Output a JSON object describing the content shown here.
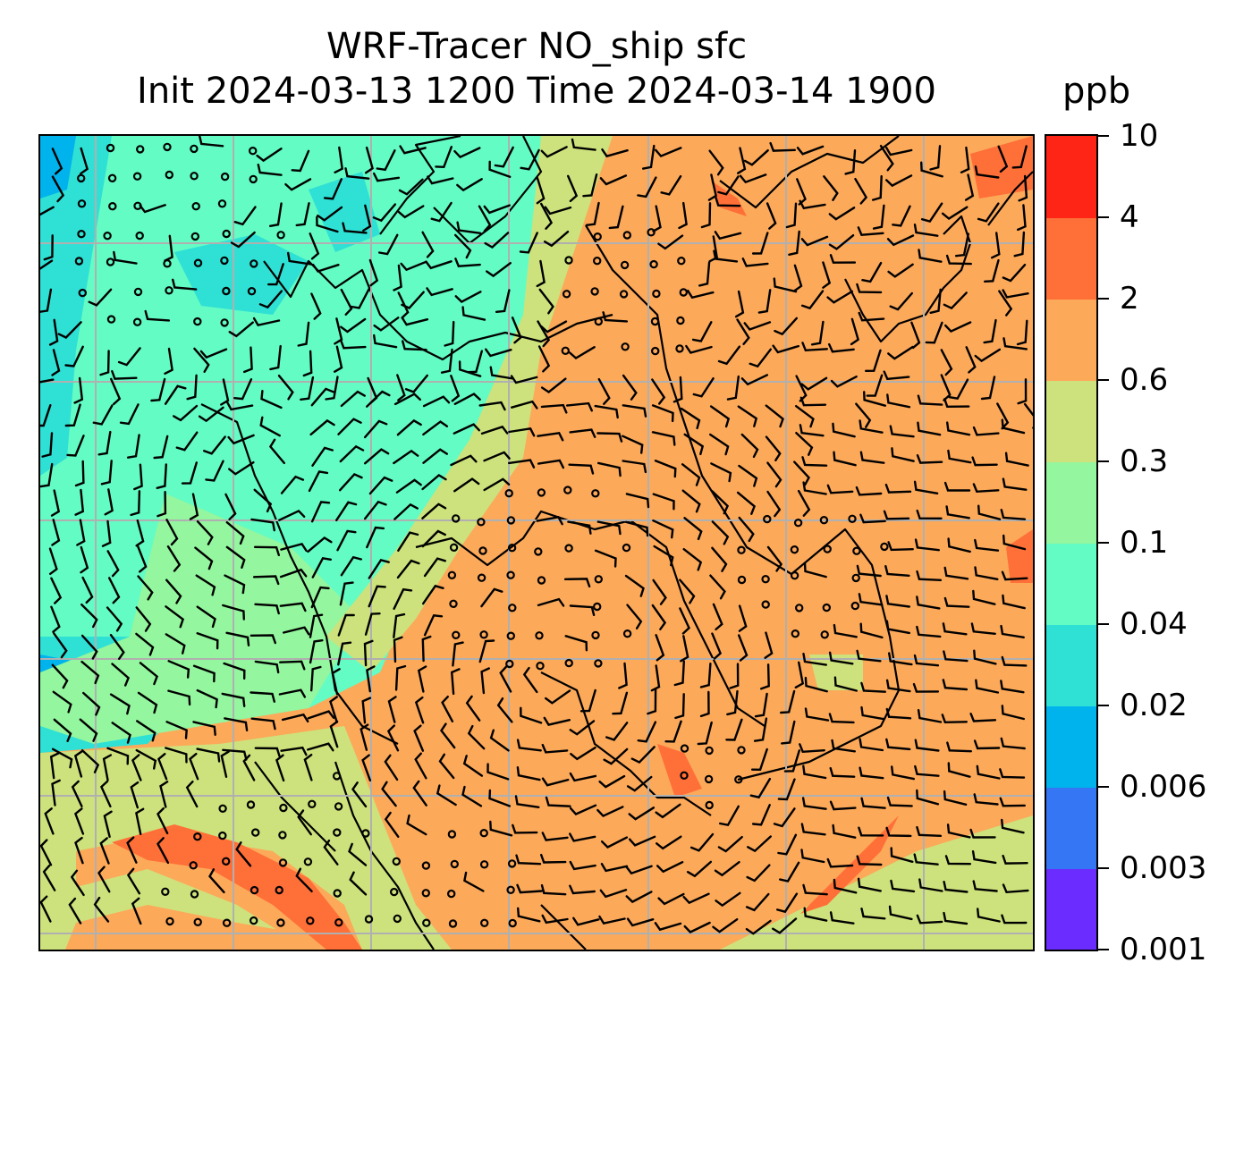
{
  "figure": {
    "title_line1": "WRF-Tracer NO_ship sfc",
    "title_line2": "Init 2024-03-13 1200 Time 2024-03-14 1900",
    "units": "ppb"
  },
  "colorbar": {
    "tick_labels": [
      "0.001",
      "0.003",
      "0.006",
      "0.02",
      "0.04",
      "0.1",
      "0.3",
      "0.6",
      "2",
      "4",
      "10"
    ],
    "bin_colors": [
      "#6a2cff",
      "#3576f5",
      "#01b3ec",
      "#2fe0d5",
      "#63fcc4",
      "#94f69e",
      "#cde27c",
      "#fca95a",
      "#ff6f38",
      "#ff2516"
    ]
  },
  "map": {
    "field_colors": {
      "very_low": "#2fe0d5",
      "low": "#63fcc4",
      "low_mid": "#94f69e",
      "mid": "#cde27c",
      "high": "#fca95a",
      "very_high": "#ff6f38",
      "min_blue": "#01b3ec"
    },
    "gridline_color": "#b0b0b0",
    "vectors": "wind-barbs",
    "calm_marker": "calm-circle"
  }
}
